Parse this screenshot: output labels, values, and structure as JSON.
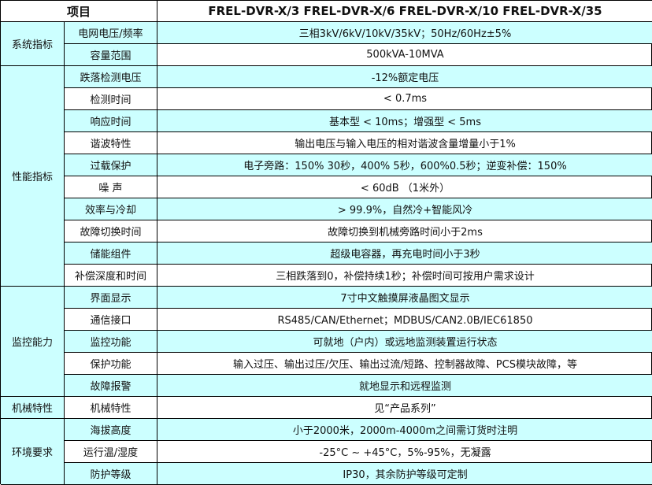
{
  "header": {
    "item_label": "项目",
    "models_label": "FREL-DVR-X/3 FREL-DVR-X/6  FREL-DVR-X/10 FREL-DVR-X/35"
  },
  "colors": {
    "shaded": "#ccffff",
    "plain": "#ffffff",
    "border": "#000000"
  },
  "groups": [
    {
      "category": "系统指标",
      "rows": [
        {
          "item": "电网电压/频率",
          "value": "三相3kV/6kV/10kV/35kV；50Hz/60Hz±5%"
        },
        {
          "item": "容量范围",
          "value": "500kVA-10MVA"
        }
      ]
    },
    {
      "category": "性能指标",
      "rows": [
        {
          "item": "跌落检测电压",
          "value": "-12%额定电压"
        },
        {
          "item": "检测时间",
          "value": "< 0.7ms"
        },
        {
          "item": "响应时间",
          "value": "基本型 < 10ms；增强型 < 5ms"
        },
        {
          "item": "谐波特性",
          "value": "输出电压与输入电压的相对谐波含量增量小于1%"
        },
        {
          "item": "过载保护",
          "value": "电子旁路：150% 30秒，400% 5秒，600%0.5秒；逆变补偿：150%"
        },
        {
          "item": "噪 声",
          "value": "< 60dB （1米外）"
        },
        {
          "item": "效率与冷却",
          "value": "> 99.9%，自然冷+智能风冷"
        },
        {
          "item": "故障切换时间",
          "value": "故障切换到机械旁路时间小于2ms"
        },
        {
          "item": "储能组件",
          "value": "超级电容器，再充电时间小于3秒"
        },
        {
          "item": "补偿深度和时间",
          "value": "三相跌落到0，补偿持续1秒；补偿时间可按用户需求设计"
        }
      ]
    },
    {
      "category": "监控能力",
      "rows": [
        {
          "item": "界面显示",
          "value": "7寸中文触摸屏液晶图文显示"
        },
        {
          "item": "通信接口",
          "value": "RS485/CAN/Ethernet；MDBUS/CAN2.0B/IEC61850"
        },
        {
          "item": "监控功能",
          "value": "可就地（户内）或远地监测装置运行状态"
        },
        {
          "item": "保护功能",
          "value": "输入过压、输出过压/欠压、输出过流/短路、控制器故障、PCS模块故障，等"
        },
        {
          "item": "故障报警",
          "value": "就地显示和远程监测"
        }
      ]
    },
    {
      "category": "机械特性",
      "rows": [
        {
          "item": "机械特性",
          "value": "见“产品系列”"
        }
      ]
    },
    {
      "category": "环境要求",
      "rows": [
        {
          "item": "海拔高度",
          "value": "小于2000米，2000m-4000m之间需订货时注明"
        },
        {
          "item": "运行温/湿度",
          "value": "-25°C ~ +45°C，5%-95%，无凝露"
        },
        {
          "item": "防护等级",
          "value": "IP30，其余防护等级可定制"
        }
      ]
    }
  ]
}
